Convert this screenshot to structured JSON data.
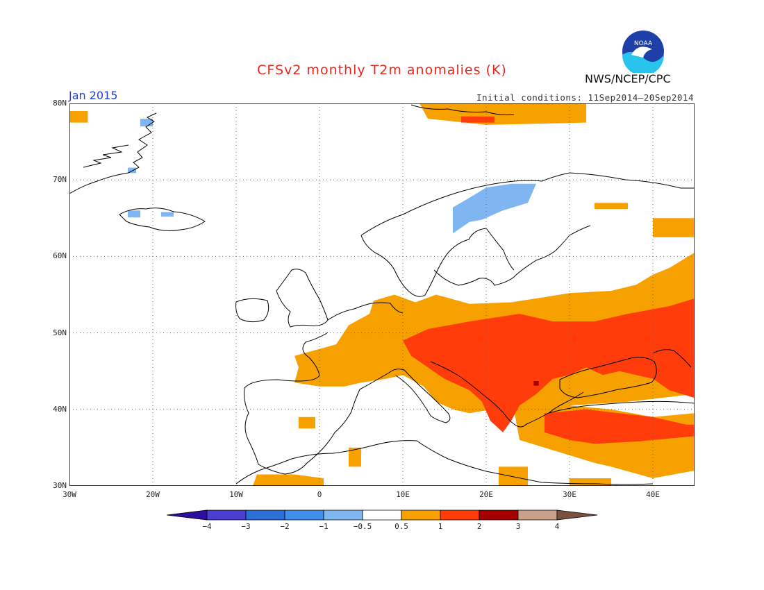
{
  "title": "CFSv2 monthly T2m anomalies (K)",
  "valid_month": "Jan 2015",
  "initial_conditions": "Initial conditions: 11Sep2014–20Sep2014",
  "agency": "NWS/NCEP/CPC",
  "logo_text": "NOAA",
  "map": {
    "lat_labels": [
      "80N",
      "70N",
      "60N",
      "50N",
      "40N",
      "30N"
    ],
    "lon_labels": [
      "30W",
      "20W",
      "10W",
      "0",
      "10E",
      "20E",
      "30E",
      "40E"
    ],
    "lat_range": [
      30,
      80
    ],
    "lon_range": [
      -30,
      45
    ]
  },
  "colorbar": {
    "labels": [
      "−4",
      "−3",
      "−2",
      "−1",
      "−0.5",
      "0.5",
      "1",
      "2",
      "3",
      "4"
    ],
    "colors": [
      "#2c0f9e",
      "#4a3fd0",
      "#2a6ed6",
      "#3f8eea",
      "#7fb6f2",
      "#ffffff",
      "#f7a100",
      "#ff3c0a",
      "#a40000",
      "#c9a08a",
      "#7a5040"
    ]
  },
  "anomaly_colors": {
    "plus_0_5_to_1": "#f7a100",
    "plus_1_to_2": "#ff3c0a",
    "plus_2_to_3": "#a40000",
    "minus_1_to_minus_0_5": "#7fb6f2"
  }
}
